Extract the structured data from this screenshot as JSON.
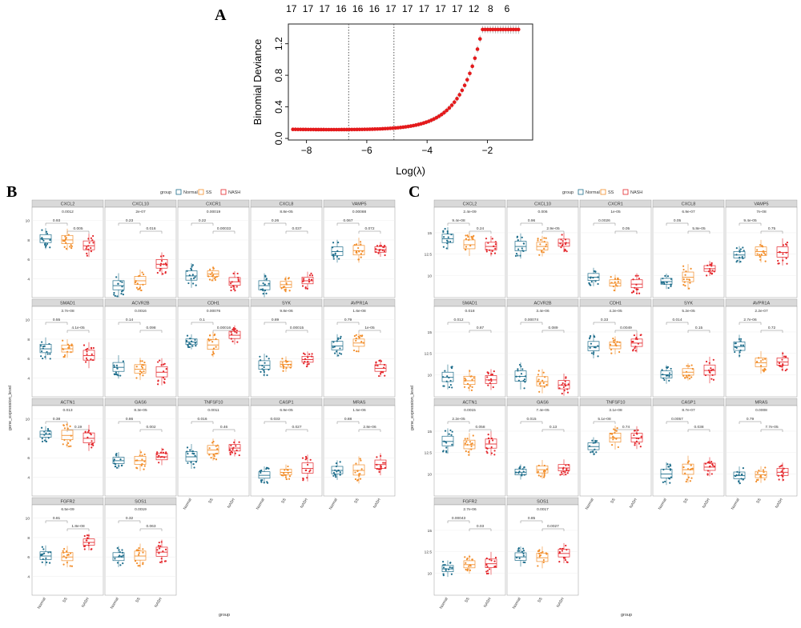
{
  "panels": {
    "a_letter": "A",
    "b_letter": "B",
    "c_letter": "C"
  },
  "colors": {
    "normal": "#1f6e8c",
    "ss": "#f28e2b",
    "nash": "#e4262b",
    "lasso_point": "#e41a1c",
    "strip_bg": "#d9d9d9",
    "grid": "#ebebeb"
  },
  "chart_data": [
    {
      "id": "lasso",
      "type": "line",
      "title": "",
      "xlabel": "Log(λ)",
      "ylabel": "Binomial Deviance",
      "xlim": [
        -8.6,
        -0.5
      ],
      "ylim": [
        -0.02,
        1.45
      ],
      "x_ticks": [
        -8,
        -6,
        -4,
        -2
      ],
      "y_ticks": [
        0.0,
        0.4,
        0.8,
        1.2
      ],
      "y_tick_labels": [
        "0.0",
        "0.4",
        "0.8",
        "1.2"
      ],
      "top_axis_positions": [
        -8.5,
        -7.95,
        -7.4,
        -6.85,
        -6.3,
        -5.75,
        -5.2,
        -4.65,
        -4.1,
        -3.55,
        -3.0,
        -2.45,
        -1.9,
        -1.35
      ],
      "top_axis_labels": [
        "17",
        "17",
        "17",
        "16",
        "16",
        "16",
        "17",
        "17",
        "17",
        "17",
        "17",
        "12",
        "8",
        "6"
      ],
      "vlines": [
        -6.6,
        -5.1
      ],
      "grid": false
    },
    {
      "id": "panel_b",
      "type": "box",
      "panel": "B",
      "ylabel": "gene_expression_level",
      "xlabel": "group",
      "legend": {
        "title": "group",
        "entries": [
          "Normal",
          "SS",
          "NASH"
        ],
        "position": "top"
      },
      "categories": [
        "Normal",
        "SS",
        "NASH"
      ],
      "facets": [
        {
          "gene": "CXCL2",
          "p_overall": "0.0012",
          "p_left": "0.93",
          "p_right": "0.005",
          "p_wide": "",
          "medians": [
            8.1,
            8.0,
            7.4
          ],
          "yticks": [
            4,
            6,
            8,
            10
          ],
          "ylim": [
            2.4,
            11.2
          ]
        },
        {
          "gene": "CXCL10",
          "p_overall": "2e-07",
          "p_left": "0.23",
          "p_right": "0.016",
          "p_wide": "",
          "medians": [
            3.3,
            3.8,
            5.5
          ],
          "yticks": [
            4,
            6,
            8,
            10
          ],
          "ylim": [
            2.4,
            11.2
          ]
        },
        {
          "gene": "CXCR1",
          "p_overall": "0.00019",
          "p_left": "0.22",
          "p_right": "0.00033",
          "p_wide": "",
          "medians": [
            4.3,
            4.5,
            3.7
          ],
          "yticks": [
            4,
            6,
            8,
            10
          ],
          "ylim": [
            2.4,
            11.2
          ]
        },
        {
          "gene": "CXCL8",
          "p_overall": "8.8e-05",
          "p_left": "0.26",
          "p_right": "0.037",
          "p_wide": "",
          "medians": [
            3.3,
            3.4,
            3.8
          ],
          "yticks": [
            4,
            6,
            8,
            10
          ],
          "ylim": [
            2.4,
            11.2
          ]
        },
        {
          "gene": "VAMP5",
          "p_overall": "0.00088",
          "p_left": "0.067",
          "p_right": "0.072",
          "p_wide": "",
          "medians": [
            6.8,
            6.9,
            7.0
          ],
          "yticks": [
            4,
            6,
            8,
            10
          ],
          "ylim": [
            2.4,
            11.2
          ]
        },
        {
          "gene": "SMAD1",
          "p_overall": "3.7e-08",
          "p_left": "0.55",
          "p_right": "4.1e-05",
          "p_wide": "",
          "medians": [
            7.0,
            7.0,
            6.3
          ],
          "yticks": [
            4,
            6,
            8,
            10
          ],
          "ylim": [
            2.4,
            11.2
          ]
        },
        {
          "gene": "ACVR2B",
          "p_overall": "0.0016",
          "p_left": "0.14",
          "p_right": "0.098",
          "p_wide": "",
          "medians": [
            5.1,
            4.9,
            4.6
          ],
          "yticks": [
            4,
            6,
            8,
            10
          ],
          "ylim": [
            2.4,
            11.2
          ]
        },
        {
          "gene": "CDH1",
          "p_overall": "0.00076",
          "p_left": "0.1",
          "p_right": "0.00016",
          "p_wide": "",
          "medians": [
            7.7,
            7.4,
            8.4
          ],
          "yticks": [
            4,
            6,
            8,
            10
          ],
          "ylim": [
            2.4,
            11.2
          ]
        },
        {
          "gene": "SYK",
          "p_overall": "9.8e-06",
          "p_left": "0.89",
          "p_right": "0.00015",
          "p_wide": "",
          "medians": [
            5.3,
            5.4,
            5.9
          ],
          "yticks": [
            4,
            6,
            8,
            10
          ],
          "ylim": [
            2.4,
            11.2
          ]
        },
        {
          "gene": "AVPR1A",
          "p_overall": "1.6e-08",
          "p_left": "0.79",
          "p_right": "1e-05",
          "p_wide": "",
          "medians": [
            7.3,
            7.6,
            5.0
          ],
          "yticks": [
            4,
            6,
            8,
            10
          ],
          "ylim": [
            2.4,
            11.2
          ]
        },
        {
          "gene": "ACTN1",
          "p_overall": "0.013",
          "p_left": "0.38",
          "p_right": "0.19",
          "p_wide": "",
          "medians": [
            8.4,
            8.3,
            8.0
          ],
          "yticks": [
            4,
            6,
            8,
            10
          ],
          "ylim": [
            2.4,
            11.2
          ]
        },
        {
          "gene": "GAS6",
          "p_overall": "8.3e-05",
          "p_left": "0.86",
          "p_right": "0.002",
          "p_wide": "",
          "medians": [
            5.7,
            5.7,
            6.1
          ],
          "yticks": [
            4,
            6,
            8,
            10
          ],
          "ylim": [
            2.4,
            11.2
          ]
        },
        {
          "gene": "TNFSF10",
          "p_overall": "0.0011",
          "p_left": "0.016",
          "p_right": "0.46",
          "p_wide": "",
          "medians": [
            6.1,
            6.8,
            7.0
          ],
          "yticks": [
            4,
            6,
            8,
            10
          ],
          "ylim": [
            2.4,
            11.2
          ]
        },
        {
          "gene": "CASP1",
          "p_overall": "6.9e-05",
          "p_left": "0.033",
          "p_right": "0.027",
          "p_wide": "",
          "medians": [
            4.2,
            4.5,
            4.9
          ],
          "yticks": [
            4,
            6,
            8,
            10
          ],
          "ylim": [
            2.4,
            11.2
          ]
        },
        {
          "gene": "MRAS",
          "p_overall": "1.5e-06",
          "p_left": "0.88",
          "p_right": "2.8e-06",
          "p_wide": "",
          "medians": [
            4.7,
            4.7,
            5.3
          ],
          "yticks": [
            4,
            6,
            8,
            10
          ],
          "ylim": [
            2.4,
            11.2
          ]
        },
        {
          "gene": "FGFR2",
          "p_overall": "6.5e-09",
          "p_left": "0.81",
          "p_right": "1.8e-08",
          "p_wide": "",
          "medians": [
            6.1,
            6.0,
            7.5
          ],
          "yticks": [
            4,
            6,
            8,
            10
          ],
          "ylim": [
            2.4,
            11.2
          ]
        },
        {
          "gene": "SOS1",
          "p_overall": "0.0019",
          "p_left": "0.32",
          "p_right": "0.063",
          "p_wide": "",
          "medians": [
            6.0,
            6.1,
            6.5
          ],
          "yticks": [
            4,
            6,
            8,
            10
          ],
          "ylim": [
            2.4,
            11.2
          ]
        }
      ]
    },
    {
      "id": "panel_c",
      "type": "box",
      "panel": "C",
      "ylabel": "gene_expression_level",
      "xlabel": "group",
      "legend": {
        "title": "group",
        "entries": [
          "Normal",
          "SS",
          "NASH"
        ],
        "position": "top"
      },
      "categories": [
        "Normal",
        "SS",
        "NASH"
      ],
      "facets": [
        {
          "gene": "CXCL2",
          "p_overall": "2.4e-09",
          "p_left": "9.4e-08",
          "p_right": "0.24",
          "p_wide": "",
          "medians": [
            14.3,
            13.6,
            13.4
          ],
          "yticks": [
            10.0,
            12.5,
            15.0
          ],
          "ylim": [
            7.8,
            17.8
          ]
        },
        {
          "gene": "CXCL10",
          "p_overall": "0.006",
          "p_left": "0.96",
          "p_right": "2.9e-05",
          "p_wide": "",
          "medians": [
            13.4,
            13.4,
            13.8
          ],
          "yticks": [
            10.0,
            12.5,
            15.0
          ],
          "ylim": [
            7.8,
            17.8
          ]
        },
        {
          "gene": "CXCR1",
          "p_overall": "1e-05",
          "p_left": "0.0026",
          "p_right": "0.05",
          "p_wide": "",
          "medians": [
            9.8,
            9.1,
            9.0
          ],
          "yticks": [
            10.0,
            12.5,
            15.0
          ],
          "ylim": [
            7.8,
            17.8
          ]
        },
        {
          "gene": "CXCL8",
          "p_overall": "6.9e-07",
          "p_left": "0.05",
          "p_right": "5.8e-05",
          "p_wide": "",
          "medians": [
            9.3,
            9.8,
            10.8
          ],
          "yticks": [
            10.0,
            12.5,
            15.0
          ],
          "ylim": [
            7.8,
            17.8
          ]
        },
        {
          "gene": "VAMP5",
          "p_overall": "7e-08",
          "p_left": "9.4e-05",
          "p_right": "0.75",
          "p_wide": "",
          "medians": [
            12.4,
            12.8,
            12.7
          ],
          "yticks": [
            10.0,
            12.5,
            15.0
          ],
          "ylim": [
            7.8,
            17.8
          ]
        },
        {
          "gene": "SMAD1",
          "p_overall": "0.018",
          "p_left": "0.012",
          "p_right": "0.87",
          "p_wide": "",
          "medians": [
            9.7,
            9.3,
            9.4
          ],
          "yticks": [
            10.0,
            12.5,
            15.0
          ],
          "ylim": [
            7.8,
            17.8
          ]
        },
        {
          "gene": "ACVR2B",
          "p_overall": "3.4e-06",
          "p_left": "0.00074",
          "p_right": "0.089",
          "p_wide": "",
          "medians": [
            9.8,
            9.2,
            8.8
          ],
          "yticks": [
            10.0,
            12.5,
            15.0
          ],
          "ylim": [
            7.8,
            17.8
          ]
        },
        {
          "gene": "CDH1",
          "p_overall": "4.2e-05",
          "p_left": "0.33",
          "p_right": "0.0049",
          "p_wide": "",
          "medians": [
            13.3,
            13.4,
            13.7
          ],
          "yticks": [
            10.0,
            12.5,
            15.0
          ],
          "ylim": [
            7.8,
            17.8
          ]
        },
        {
          "gene": "SYK",
          "p_overall": "5.2e-05",
          "p_left": "0.014",
          "p_right": "0.15",
          "p_wide": "",
          "medians": [
            10.0,
            10.3,
            10.5
          ],
          "yticks": [
            10.0,
            12.5,
            15.0
          ],
          "ylim": [
            7.8,
            17.8
          ]
        },
        {
          "gene": "AVPR1A",
          "p_overall": "2.2e-07",
          "p_left": "2.7e-06",
          "p_right": "0.72",
          "p_wide": "",
          "medians": [
            13.3,
            11.4,
            11.5
          ],
          "yticks": [
            10.0,
            12.5,
            15.0
          ],
          "ylim": [
            7.8,
            17.8
          ]
        },
        {
          "gene": "ACTN1",
          "p_overall": "0.0015",
          "p_left": "2.2e-05",
          "p_right": "0.058",
          "p_wide": "",
          "medians": [
            13.8,
            13.4,
            13.5
          ],
          "yticks": [
            10.0,
            12.5,
            15.0
          ],
          "ylim": [
            7.8,
            17.8
          ]
        },
        {
          "gene": "GAS6",
          "p_overall": "7.4e-05",
          "p_left": "0.015",
          "p_right": "0.13",
          "p_wide": "",
          "medians": [
            10.2,
            10.5,
            10.7
          ],
          "yticks": [
            10.0,
            12.5,
            15.0
          ],
          "ylim": [
            7.8,
            17.8
          ]
        },
        {
          "gene": "TNFSF10",
          "p_overall": "3.1e-08",
          "p_left": "5.1e-08",
          "p_right": "0.74",
          "p_wide": "",
          "medians": [
            13.2,
            14.2,
            14.2
          ],
          "yticks": [
            10.0,
            12.5,
            15.0
          ],
          "ylim": [
            7.8,
            17.8
          ]
        },
        {
          "gene": "CASP1",
          "p_overall": "8.7e-07",
          "p_left": "0.0057",
          "p_right": "0.038",
          "p_wide": "",
          "medians": [
            10.0,
            10.5,
            10.8
          ],
          "yticks": [
            10.0,
            12.5,
            15.0
          ],
          "ylim": [
            7.8,
            17.8
          ]
        },
        {
          "gene": "MRAS",
          "p_overall": "0.0008",
          "p_left": "0.79",
          "p_right": "7.7e-05",
          "p_wide": "",
          "medians": [
            9.8,
            9.9,
            10.2
          ],
          "yticks": [
            10.0,
            12.5,
            15.0
          ],
          "ylim": [
            7.8,
            17.8
          ]
        },
        {
          "gene": "FGFR2",
          "p_overall": "2.7e-06",
          "p_left": "0.00043",
          "p_right": "0.03",
          "p_wide": "",
          "medians": [
            10.5,
            11.0,
            11.1
          ],
          "yticks": [
            10.0,
            12.5,
            15.0
          ],
          "ylim": [
            7.8,
            17.8
          ]
        },
        {
          "gene": "SOS1",
          "p_overall": "0.0017",
          "p_left": "0.85",
          "p_right": "0.0027",
          "p_wide": "",
          "medians": [
            11.9,
            11.8,
            12.3
          ],
          "yticks": [
            10.0,
            12.5,
            15.0
          ],
          "ylim": [
            7.8,
            17.8
          ]
        }
      ]
    }
  ]
}
